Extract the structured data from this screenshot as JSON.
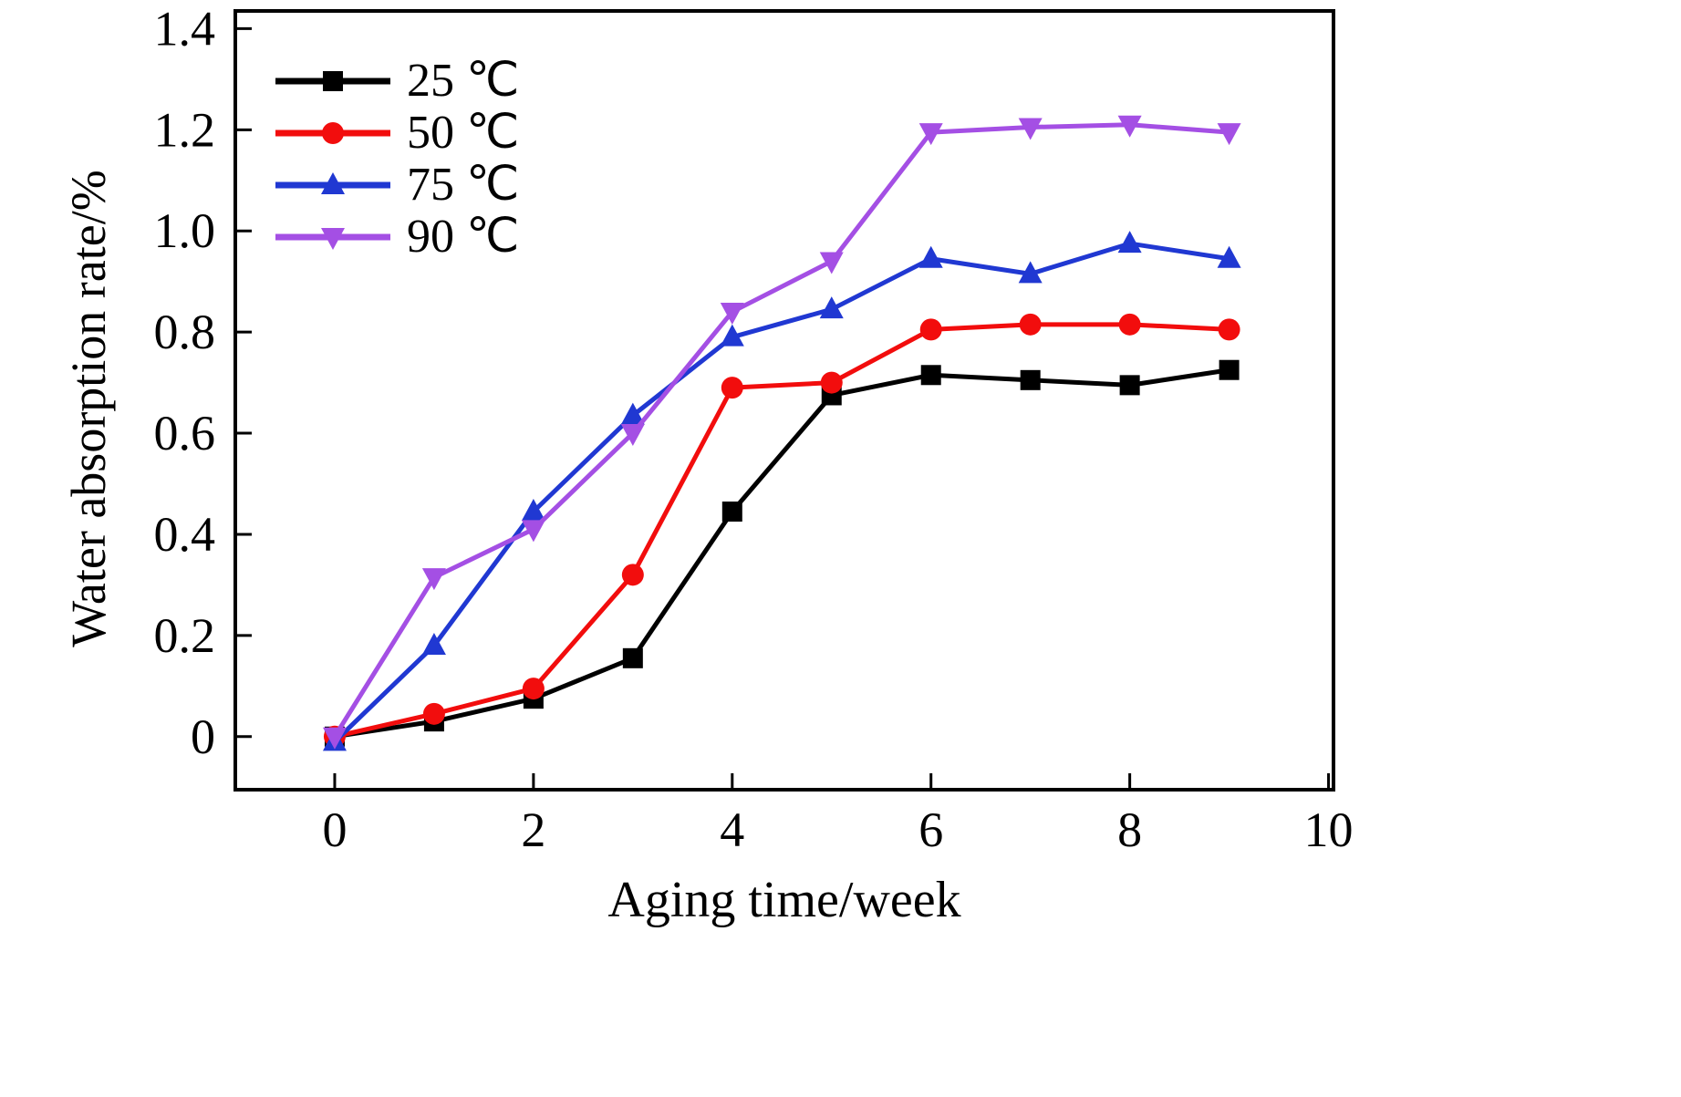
{
  "chart_data": {
    "type": "line",
    "title": "",
    "xlabel": "Aging time/week",
    "ylabel": "Water absorption rate/%",
    "xlim": [
      -1,
      10.05
    ],
    "ylim": [
      -0.105,
      1.435
    ],
    "xticks": [
      0,
      2,
      4,
      6,
      8,
      10
    ],
    "xtick_labels": [
      "0",
      "2",
      "4",
      "6",
      "8",
      "10"
    ],
    "yticks": [
      0,
      0.2,
      0.4,
      0.6,
      0.8,
      1.0,
      1.2,
      1.4
    ],
    "ytick_labels": [
      "0",
      "0.2",
      "0.4",
      "0.6",
      "0.8",
      "1.0",
      "1.2",
      "1.4"
    ],
    "grid": false,
    "legend_position": "top-left",
    "x": [
      0,
      1,
      2,
      3,
      4,
      5,
      6,
      7,
      8,
      9
    ],
    "series": [
      {
        "name": "25 ℃",
        "color": "#000000",
        "marker": "square",
        "values": [
          0.0,
          0.03,
          0.075,
          0.155,
          0.445,
          0.675,
          0.715,
          0.705,
          0.695,
          0.725
        ]
      },
      {
        "name": "50 ℃",
        "color": "#f20d0d",
        "marker": "circle",
        "values": [
          0.0,
          0.045,
          0.095,
          0.32,
          0.69,
          0.7,
          0.805,
          0.815,
          0.815,
          0.805
        ]
      },
      {
        "name": "75 ℃",
        "color": "#2038d2",
        "marker": "triangle-up",
        "values": [
          -0.01,
          0.18,
          0.445,
          0.635,
          0.79,
          0.845,
          0.945,
          0.915,
          0.975,
          0.945
        ]
      },
      {
        "name": "90 ℃",
        "color": "#a44fe4",
        "marker": "triangle-down",
        "values": [
          0.0,
          0.315,
          0.41,
          0.6,
          0.84,
          0.94,
          1.195,
          1.205,
          1.21,
          1.195
        ]
      }
    ]
  }
}
